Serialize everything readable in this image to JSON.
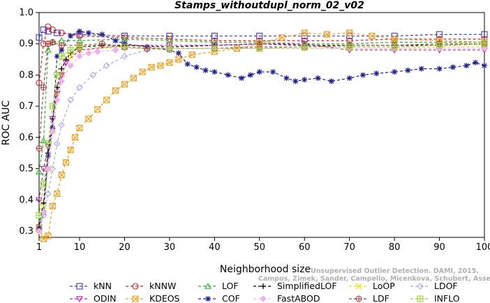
{
  "chart_data": {
    "type": "line",
    "title": "Stamps_withoutdupl_norm_02_v02",
    "xlabel": "Neighborhood size",
    "ylabel": "ROC AUC",
    "xlim": [
      1,
      100
    ],
    "ylim": [
      0.28,
      1.0
    ],
    "x_ticks": [
      1,
      10,
      20,
      30,
      40,
      50,
      60,
      70,
      80,
      90,
      100
    ],
    "y_ticks": [
      0.3,
      0.4,
      0.5,
      0.6,
      0.7,
      0.8,
      0.9,
      1.0
    ],
    "grid": false,
    "legend_position": "bottom",
    "series": [
      {
        "name": "kNN",
        "color": "#3a3ad8",
        "marker": "square",
        "points": [
          [
            1,
            0.92
          ],
          [
            2,
            0.945
          ],
          [
            3,
            0.94
          ],
          [
            5,
            0.935
          ],
          [
            10,
            0.93
          ],
          [
            20,
            0.925
          ],
          [
            30,
            0.925
          ],
          [
            40,
            0.925
          ],
          [
            50,
            0.925
          ],
          [
            60,
            0.925
          ],
          [
            70,
            0.925
          ],
          [
            80,
            0.925
          ],
          [
            90,
            0.93
          ],
          [
            100,
            0.93
          ]
        ]
      },
      {
        "name": "kNNW",
        "color": "#e02020",
        "marker": "circle",
        "points": [
          [
            1,
            0.775
          ],
          [
            2,
            0.9
          ],
          [
            3,
            0.955
          ],
          [
            4,
            0.945
          ],
          [
            6,
            0.935
          ],
          [
            10,
            0.925
          ],
          [
            20,
            0.92
          ],
          [
            30,
            0.915
          ],
          [
            40,
            0.91
          ],
          [
            50,
            0.91
          ],
          [
            60,
            0.91
          ],
          [
            70,
            0.91
          ],
          [
            80,
            0.915
          ],
          [
            90,
            0.915
          ],
          [
            100,
            0.915
          ]
        ]
      },
      {
        "name": "LOF",
        "color": "#25b825",
        "marker": "triangle-up",
        "points": [
          [
            1,
            0.49
          ],
          [
            2,
            0.59
          ],
          [
            3,
            0.88
          ],
          [
            4,
            0.905
          ],
          [
            6,
            0.91
          ],
          [
            10,
            0.91
          ],
          [
            20,
            0.915
          ],
          [
            30,
            0.91
          ],
          [
            40,
            0.905
          ],
          [
            50,
            0.905
          ],
          [
            60,
            0.9
          ],
          [
            70,
            0.9
          ],
          [
            80,
            0.905
          ],
          [
            90,
            0.905
          ],
          [
            100,
            0.905
          ]
        ]
      },
      {
        "name": "SimplifiedLOF",
        "color": "#000000",
        "marker": "plus",
        "points": [
          [
            1,
            0.32
          ],
          [
            2,
            0.39
          ],
          [
            3,
            0.55
          ],
          [
            4,
            0.66
          ],
          [
            5,
            0.76
          ],
          [
            6,
            0.82
          ],
          [
            7,
            0.85
          ],
          [
            8,
            0.87
          ],
          [
            10,
            0.89
          ],
          [
            15,
            0.895
          ],
          [
            20,
            0.895
          ],
          [
            30,
            0.89
          ],
          [
            40,
            0.895
          ],
          [
            50,
            0.9
          ],
          [
            60,
            0.895
          ],
          [
            70,
            0.895
          ],
          [
            80,
            0.895
          ],
          [
            90,
            0.895
          ],
          [
            100,
            0.9
          ]
        ]
      },
      {
        "name": "LoOP",
        "color": "#e8e800",
        "marker": "cross",
        "points": [
          [
            1,
            0.3
          ],
          [
            2,
            0.38
          ],
          [
            3,
            0.5
          ],
          [
            4,
            0.62
          ],
          [
            5,
            0.74
          ],
          [
            6,
            0.8
          ],
          [
            8,
            0.86
          ],
          [
            10,
            0.88
          ],
          [
            20,
            0.89
          ],
          [
            30,
            0.885
          ],
          [
            40,
            0.885
          ],
          [
            50,
            0.885
          ],
          [
            60,
            0.885
          ],
          [
            70,
            0.885
          ],
          [
            80,
            0.885
          ],
          [
            90,
            0.89
          ],
          [
            100,
            0.89
          ]
        ]
      },
      {
        "name": "LDOF",
        "color": "#a8a8f0",
        "marker": "diamond",
        "points": [
          [
            1,
            0.3
          ],
          [
            2,
            0.35
          ],
          [
            3,
            0.42
          ],
          [
            4,
            0.5
          ],
          [
            5,
            0.58
          ],
          [
            6,
            0.64
          ],
          [
            8,
            0.72
          ],
          [
            10,
            0.76
          ],
          [
            13,
            0.8
          ],
          [
            16,
            0.83
          ],
          [
            20,
            0.86
          ],
          [
            25,
            0.88
          ],
          [
            30,
            0.885
          ],
          [
            40,
            0.885
          ],
          [
            50,
            0.885
          ],
          [
            60,
            0.89
          ],
          [
            70,
            0.89
          ],
          [
            80,
            0.89
          ],
          [
            90,
            0.895
          ],
          [
            100,
            0.9
          ]
        ]
      },
      {
        "name": "ODIN",
        "color": "#c020c0",
        "marker": "triangle-down",
        "points": [
          [
            1,
            0.4
          ],
          [
            2,
            0.5
          ],
          [
            3,
            0.57
          ],
          [
            4,
            0.66
          ],
          [
            5,
            0.74
          ],
          [
            6,
            0.8
          ],
          [
            7,
            0.84
          ],
          [
            10,
            0.88
          ],
          [
            20,
            0.895
          ],
          [
            30,
            0.895
          ],
          [
            40,
            0.895
          ],
          [
            50,
            0.9
          ],
          [
            60,
            0.9
          ],
          [
            70,
            0.88
          ],
          [
            80,
            0.88
          ],
          [
            90,
            0.88
          ],
          [
            100,
            0.88
          ]
        ]
      },
      {
        "name": "KDEOS",
        "color": "#f0a020",
        "marker": "square-x",
        "points": [
          [
            1,
            0.31
          ],
          [
            2,
            0.275
          ],
          [
            3,
            0.285
          ],
          [
            4,
            0.38
          ],
          [
            5,
            0.42
          ],
          [
            6,
            0.48
          ],
          [
            7,
            0.52
          ],
          [
            8,
            0.56
          ],
          [
            9,
            0.6
          ],
          [
            10,
            0.63
          ],
          [
            12,
            0.66
          ],
          [
            14,
            0.69
          ],
          [
            16,
            0.72
          ],
          [
            18,
            0.75
          ],
          [
            20,
            0.77
          ],
          [
            22,
            0.79
          ],
          [
            24,
            0.81
          ],
          [
            26,
            0.825
          ],
          [
            28,
            0.83
          ],
          [
            30,
            0.84
          ],
          [
            32,
            0.85
          ],
          [
            35,
            0.865
          ],
          [
            40,
            0.875
          ],
          [
            45,
            0.885
          ],
          [
            50,
            0.9
          ],
          [
            55,
            0.92
          ],
          [
            60,
            0.935
          ],
          [
            65,
            0.93
          ],
          [
            70,
            0.935
          ],
          [
            75,
            0.925
          ],
          [
            80,
            0.915
          ],
          [
            90,
            0.91
          ],
          [
            100,
            0.905
          ]
        ]
      },
      {
        "name": "COF",
        "color": "#202090",
        "marker": "asterisk",
        "points": [
          [
            1,
            0.31
          ],
          [
            2,
            0.36
          ],
          [
            3,
            0.54
          ],
          [
            4,
            0.63
          ],
          [
            5,
            0.86
          ],
          [
            6,
            0.88
          ],
          [
            8,
            0.925
          ],
          [
            10,
            0.94
          ],
          [
            12,
            0.935
          ],
          [
            15,
            0.93
          ],
          [
            18,
            0.91
          ],
          [
            20,
            0.9
          ],
          [
            25,
            0.89
          ],
          [
            30,
            0.88
          ],
          [
            32,
            0.87
          ],
          [
            34,
            0.835
          ],
          [
            36,
            0.825
          ],
          [
            38,
            0.815
          ],
          [
            40,
            0.81
          ],
          [
            43,
            0.8
          ],
          [
            46,
            0.79
          ],
          [
            48,
            0.8
          ],
          [
            50,
            0.81
          ],
          [
            53,
            0.81
          ],
          [
            56,
            0.79
          ],
          [
            58,
            0.78
          ],
          [
            60,
            0.785
          ],
          [
            63,
            0.79
          ],
          [
            66,
            0.78
          ],
          [
            70,
            0.79
          ],
          [
            73,
            0.8
          ],
          [
            76,
            0.805
          ],
          [
            80,
            0.81
          ],
          [
            83,
            0.815
          ],
          [
            86,
            0.82
          ],
          [
            90,
            0.82
          ],
          [
            93,
            0.825
          ],
          [
            96,
            0.83
          ],
          [
            98,
            0.84
          ],
          [
            100,
            0.83
          ]
        ]
      },
      {
        "name": "FastABOD",
        "color": "#f0b0f0",
        "marker": "diamond-filled",
        "points": [
          [
            1,
            0.3
          ],
          [
            2,
            0.36
          ],
          [
            3,
            0.5
          ],
          [
            4,
            0.62
          ],
          [
            5,
            0.72
          ],
          [
            6,
            0.78
          ],
          [
            8,
            0.83
          ],
          [
            10,
            0.86
          ],
          [
            12,
            0.87
          ],
          [
            14,
            0.875
          ],
          [
            18,
            0.88
          ],
          [
            20,
            0.885
          ],
          [
            30,
            0.885
          ],
          [
            40,
            0.885
          ],
          [
            50,
            0.885
          ],
          [
            60,
            0.885
          ],
          [
            70,
            0.885
          ],
          [
            80,
            0.885
          ],
          [
            90,
            0.885
          ],
          [
            100,
            0.885
          ]
        ]
      },
      {
        "name": "LDF",
        "color": "#b04040",
        "marker": "circle-plus",
        "points": [
          [
            1,
            0.565
          ],
          [
            2,
            0.76
          ],
          [
            3,
            0.9
          ],
          [
            4,
            0.905
          ],
          [
            6,
            0.895
          ],
          [
            10,
            0.895
          ],
          [
            15,
            0.9
          ],
          [
            20,
            0.89
          ],
          [
            25,
            0.885
          ],
          [
            30,
            0.885
          ],
          [
            40,
            0.885
          ],
          [
            50,
            0.89
          ],
          [
            60,
            0.89
          ],
          [
            70,
            0.895
          ],
          [
            80,
            0.895
          ],
          [
            90,
            0.9
          ],
          [
            100,
            0.9
          ]
        ]
      },
      {
        "name": "INFLO",
        "color": "#90d830",
        "marker": "square-cross",
        "points": [
          [
            1,
            0.35
          ],
          [
            2,
            0.45
          ],
          [
            3,
            0.58
          ],
          [
            4,
            0.7
          ],
          [
            5,
            0.8
          ],
          [
            6,
            0.86
          ],
          [
            8,
            0.88
          ],
          [
            10,
            0.89
          ],
          [
            20,
            0.89
          ],
          [
            30,
            0.885
          ],
          [
            40,
            0.885
          ],
          [
            50,
            0.885
          ],
          [
            60,
            0.89
          ],
          [
            70,
            0.89
          ],
          [
            80,
            0.89
          ],
          [
            90,
            0.895
          ],
          [
            100,
            0.9
          ]
        ]
      }
    ]
  },
  "legend_rows": [
    [
      "kNN",
      "kNNW",
      "LOF",
      "SimplifiedLOF",
      "LoOP",
      "LDOF"
    ],
    [
      "ODIN",
      "KDEOS",
      "COF",
      "FastABOD",
      "LDF",
      "INFLO"
    ]
  ],
  "watermark": [
    "Unsupervised Outlier Detection. DAMI, 2015.",
    "Campos, Zimek, Sander, Campello, Micenkova, Schubert, Assent, Houle"
  ]
}
